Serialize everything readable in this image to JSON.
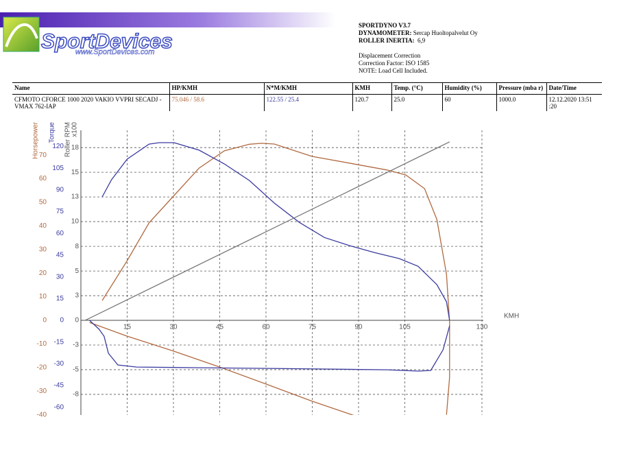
{
  "header": {
    "logo": "SportDevices",
    "logo_url": "www.SportDevices.com",
    "software": "SPORTDYNO V3.7",
    "dynamometer_label": "DYNAMOMETER:",
    "dynamometer": "Sercap Huoltopalvelut Oy",
    "inertia_label": "ROLLER INERTIA:",
    "inertia": "6,9",
    "notes": [
      "Displacement Correction",
      "Correction Factor: ISO 1585",
      "NOTE: Load Cell Included."
    ]
  },
  "table": {
    "headers": [
      "Name",
      "HP/KMH",
      "N*M/KMH",
      "KMH",
      "Temp. (°C)",
      "Humidity (%)",
      "Pressure (mba r)",
      "Date/Time"
    ],
    "rows": [
      [
        "CFMOTO CFORCE 1000 2020 VAKIO VVPRI SECADJ - VMAX 762-IAP",
        "75.046 / 58.6",
        "122.55 / 25.4",
        "120.7",
        "25.0",
        "60",
        "1000.0",
        "12.12.2020 13:51 :20"
      ]
    ]
  },
  "chart_data": {
    "type": "line",
    "x_label": "KMH",
    "xlim": [
      0,
      130
    ],
    "xticks": [
      15,
      30,
      45,
      60,
      75,
      90,
      105,
      130
    ],
    "grid": true,
    "y_axes": [
      {
        "label": "Horsepower",
        "color": "#b0693f",
        "ylim": [
          -40.1,
          80.5
        ],
        "yticks": [
          70,
          60,
          50,
          40,
          30,
          20,
          10,
          0,
          -10,
          -20,
          -30,
          -40
        ]
      },
      {
        "label": "Torque",
        "color": "#3a3aa0",
        "ylim": [
          -65.3,
          131.1
        ],
        "yticks": [
          120,
          105,
          90,
          75,
          60,
          45,
          30,
          15,
          0,
          -15,
          -30,
          -45,
          -60
        ]
      },
      {
        "label": "Roller RPM",
        "unit": "x100",
        "color": "#555555",
        "grid": true,
        "ylim": [
          -9.86,
          19.8
        ],
        "yticks": [
          18,
          {
            "value": 15.43,
            "label": "15"
          },
          {
            "value": 12.86,
            "label": "13"
          },
          {
            "value": 10.29,
            "label": "10"
          },
          {
            "value": 7.71,
            "label": "8"
          },
          {
            "value": 5.14,
            "label": "5"
          },
          {
            "value": 2.57,
            "label": "3"
          },
          0,
          {
            "value": -2.57,
            "label": "-3"
          },
          {
            "value": -5.14,
            "label": "-5"
          },
          {
            "value": -7.71,
            "label": "-8"
          }
        ]
      }
    ],
    "series": [
      {
        "axis": 0,
        "color": "#b0693f",
        "x": [
          6.9,
          15.0,
          22.1,
          30.2,
          38.3,
          46.5,
          54.6,
          58.6,
          62.7,
          74.8,
          87.0,
          99.2,
          105.3,
          111.4,
          115.4,
          118.5,
          119.5,
          119.5,
          118.5
        ],
        "values": [
          8.4,
          25.3,
          41.3,
          52.9,
          64.5,
          71.8,
          74.6,
          75.0,
          74.7,
          69.5,
          66.6,
          63.7,
          61.6,
          55.8,
          42.7,
          19.5,
          -0.9,
          -24.1,
          -40
        ]
      },
      {
        "axis": 0,
        "color": "#b0693f",
        "x": [
          2.8,
          15.0,
          30.2,
          45.0,
          60.0,
          75.0,
          89.9
        ],
        "values": [
          -0.9,
          -6.7,
          -13.1,
          -19.8,
          -27.0,
          -34.3,
          -40.9
        ]
      },
      {
        "axis": 1,
        "color": "#3a3aa0",
        "x": [
          6.9,
          9.9,
          15.0,
          22.1,
          25.4,
          30.2,
          38.3,
          46.5,
          54.6,
          62.7,
          70.8,
          78.9,
          87.0,
          95.1,
          103.2,
          109.3,
          115.4,
          118.5,
          119.5
        ],
        "values": [
          85.2,
          97.0,
          111.2,
          121.6,
          122.6,
          122.6,
          117.4,
          107.9,
          96.5,
          80.9,
          67.6,
          57.2,
          51.6,
          46.8,
          42.6,
          37.3,
          24.6,
          12.8,
          0
        ]
      },
      {
        "axis": 1,
        "color": "#3a3aa0",
        "x": [
          2.8,
          5.9,
          7.5,
          8.9,
          12.0,
          18.1,
          38.3,
          58.6,
          78.9,
          99.2,
          109.3,
          113.4,
          117.4,
          119.5
        ],
        "values": [
          0,
          -6.2,
          -10.9,
          -22.7,
          -30.8,
          -32.2,
          -32.7,
          -33.1,
          -33.6,
          -34.1,
          -35.0,
          -34.6,
          -20.3,
          -3.8
        ]
      },
      {
        "axis": 2,
        "color": "#777777",
        "x": [
          1.4,
          119.5
        ],
        "values": [
          0,
          18.6
        ]
      }
    ]
  }
}
